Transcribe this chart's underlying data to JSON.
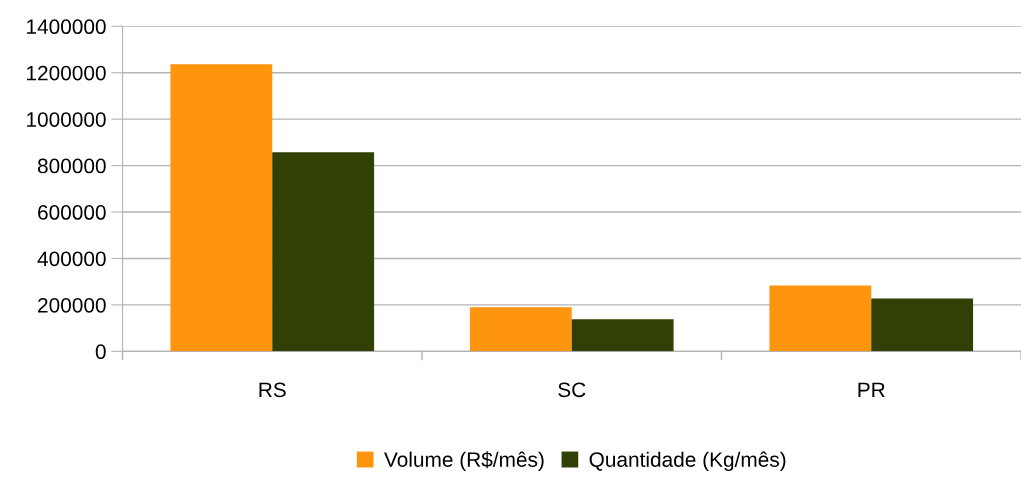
{
  "chart_data": {
    "type": "bar",
    "categories": [
      "RS",
      "SC",
      "PR"
    ],
    "series": [
      {
        "name": "Volume (R$/mês)",
        "color": "#ff950e",
        "values": [
          1237000,
          190000,
          284000
        ]
      },
      {
        "name": "Quantidade (Kg/mês)",
        "color": "#314004",
        "values": [
          857000,
          138000,
          228000
        ]
      }
    ],
    "ylim": [
      0,
      1400000
    ],
    "yticks": [
      0,
      200000,
      400000,
      600000,
      800000,
      1000000,
      1200000,
      1400000
    ],
    "grid": "y",
    "legend": "bottom"
  }
}
